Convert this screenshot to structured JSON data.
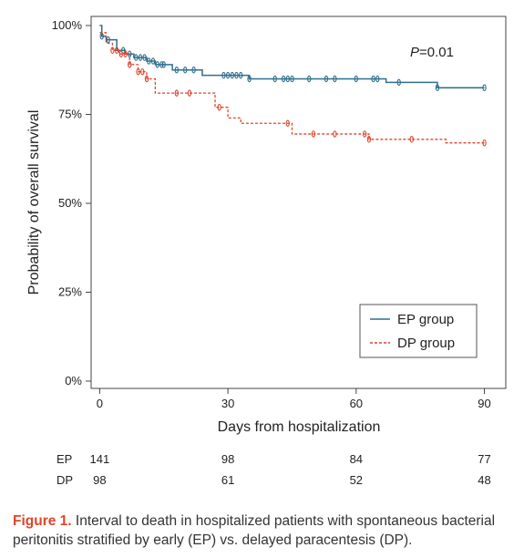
{
  "chart_data": {
    "type": "line",
    "subtype": "kaplan-meier",
    "xlabel": "Days from hospitalization",
    "ylabel": "Probability of overall survival",
    "xlim": [
      -2,
      95
    ],
    "ylim": [
      0,
      100
    ],
    "x_ticks": [
      0,
      30,
      60,
      90
    ],
    "y_ticks": [
      0,
      25,
      50,
      75,
      100
    ],
    "y_tick_labels": [
      "0%",
      "25%",
      "50%",
      "75%",
      "100%"
    ],
    "annotation": {
      "prefix": "P",
      "text": "=0.01"
    },
    "legend_position": "bottom-right",
    "series": [
      {
        "name": "EP group",
        "color": "#2f6f8f",
        "style": "solid",
        "steps": [
          [
            0,
            100
          ],
          [
            0.5,
            97
          ],
          [
            1.5,
            96
          ],
          [
            4,
            93
          ],
          [
            6,
            92
          ],
          [
            8,
            91
          ],
          [
            11,
            90
          ],
          [
            13,
            89
          ],
          [
            17,
            87.5
          ],
          [
            24,
            86
          ],
          [
            35,
            85
          ],
          [
            67,
            84
          ],
          [
            79,
            82.5
          ],
          [
            90,
            82.5
          ]
        ],
        "censor_x": [
          0.5,
          2,
          5.5,
          7,
          8.5,
          9.5,
          10.5,
          11.5,
          12.5,
          13.5,
          14.5,
          15,
          18,
          20,
          22,
          29,
          30,
          31,
          32,
          33,
          35,
          41,
          43,
          44,
          45,
          49,
          53,
          55,
          60,
          64,
          65,
          70,
          79,
          90
        ]
      },
      {
        "name": "DP group",
        "color": "#e0452b",
        "style": "dashed",
        "steps": [
          [
            0,
            98
          ],
          [
            1.5,
            95
          ],
          [
            3,
            93
          ],
          [
            4.5,
            92
          ],
          [
            7,
            89
          ],
          [
            9,
            87
          ],
          [
            11,
            85
          ],
          [
            13,
            81
          ],
          [
            27,
            77
          ],
          [
            30,
            74
          ],
          [
            33,
            72.5
          ],
          [
            45,
            69.5
          ],
          [
            63,
            68
          ],
          [
            81,
            67
          ],
          [
            90,
            67
          ]
        ],
        "censor_x": [
          3,
          4,
          5,
          6,
          7,
          9,
          10,
          11,
          18,
          21,
          28,
          44,
          50,
          55,
          62,
          63,
          73,
          90
        ]
      }
    ],
    "risk_table": {
      "rows": [
        {
          "label": "EP",
          "values": [
            "141",
            "98",
            "84",
            "77"
          ]
        },
        {
          "label": "DP",
          "values": [
            "98",
            "61",
            "52",
            "48"
          ]
        }
      ],
      "x": [
        0,
        30,
        60,
        90
      ]
    }
  },
  "caption": {
    "label": "Figure 1.",
    "text": "Interval to death in hospitalized patients with spontaneous bacterial peritonitis stratified by early (EP) vs. delayed paracentesis (DP)."
  }
}
